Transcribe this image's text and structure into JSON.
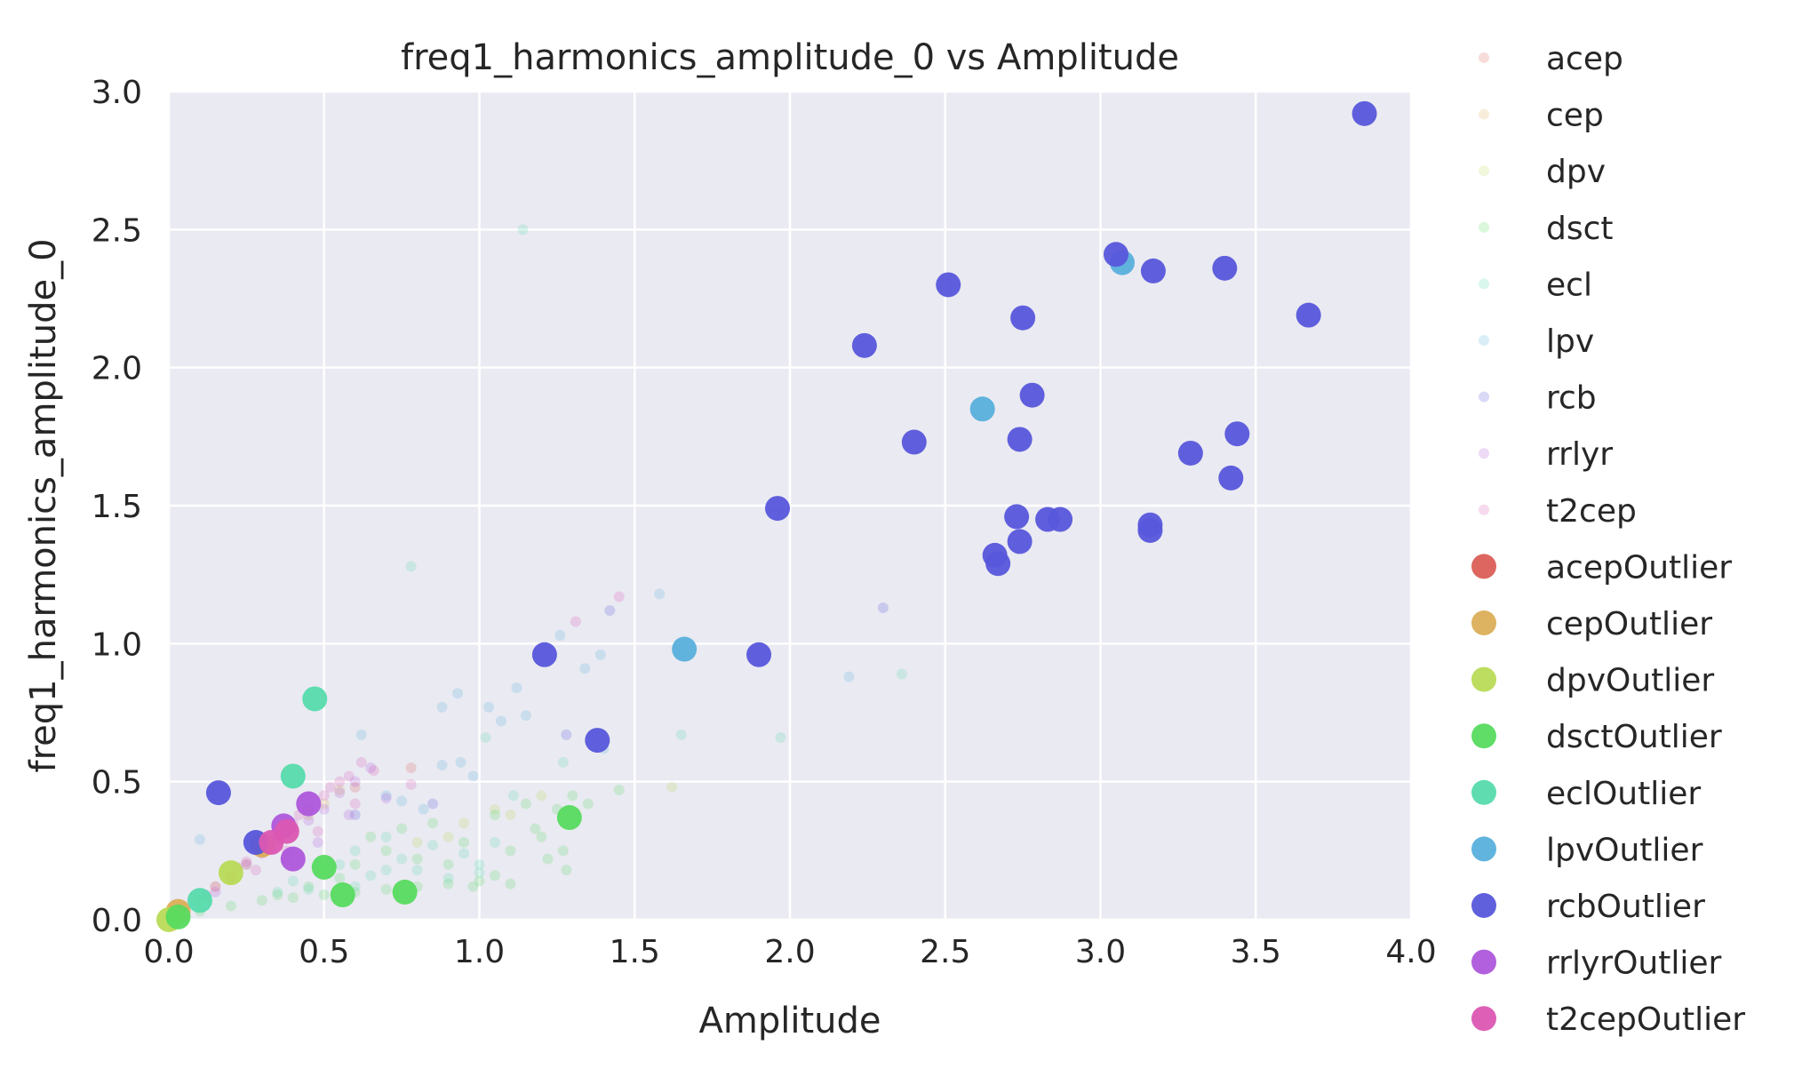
{
  "chart_data": {
    "type": "scatter",
    "title": "freq1_harmonics_amplitude_0 vs Amplitude",
    "xlabel": "Amplitude",
    "ylabel": "freq1_harmonics_amplitude_0",
    "xlim": [
      0.0,
      4.0
    ],
    "ylim": [
      0.0,
      3.0
    ],
    "xticks": [
      "0.0",
      "0.5",
      "1.0",
      "1.5",
      "2.0",
      "2.5",
      "3.0",
      "3.5",
      "4.0"
    ],
    "yticks": [
      "0.0",
      "0.5",
      "1.0",
      "1.5",
      "2.0",
      "2.5",
      "3.0"
    ],
    "grid": true,
    "legend_position": "outside right",
    "background": "#eaeaf2",
    "series": [
      {
        "name": "acep",
        "color": "#db5f57",
        "kind": "inlier",
        "points": [
          [
            0.78,
            0.55
          ],
          [
            0.45,
            0.4
          ],
          [
            0.3,
            0.25
          ],
          [
            0.2,
            0.15
          ],
          [
            0.6,
            0.48
          ]
        ]
      },
      {
        "name": "cep",
        "color": "#dbae57",
        "kind": "inlier",
        "points": [
          [
            0.1,
            0.07
          ],
          [
            0.2,
            0.16
          ],
          [
            0.3,
            0.26
          ],
          [
            0.4,
            0.33
          ],
          [
            0.5,
            0.42
          ],
          [
            0.55,
            0.47
          ],
          [
            0.35,
            0.3
          ],
          [
            0.25,
            0.2
          ],
          [
            0.15,
            0.12
          ],
          [
            0.45,
            0.38
          ]
        ]
      },
      {
        "name": "dpv",
        "color": "#b9db57",
        "kind": "inlier",
        "points": [
          [
            0.95,
            0.35
          ],
          [
            1.05,
            0.4
          ],
          [
            0.9,
            0.3
          ],
          [
            1.2,
            0.45
          ],
          [
            1.1,
            0.38
          ],
          [
            0.8,
            0.28
          ],
          [
            1.62,
            0.48
          ]
        ]
      },
      {
        "name": "dsct",
        "color": "#57db5f",
        "kind": "inlier",
        "points": [
          [
            0.1,
            0.03
          ],
          [
            0.2,
            0.05
          ],
          [
            0.3,
            0.07
          ],
          [
            0.4,
            0.08
          ],
          [
            0.5,
            0.09
          ],
          [
            0.6,
            0.1
          ],
          [
            0.7,
            0.11
          ],
          [
            0.8,
            0.12
          ],
          [
            0.9,
            0.13
          ],
          [
            1.0,
            0.14
          ],
          [
            1.1,
            0.13
          ],
          [
            0.85,
            0.35
          ],
          [
            0.95,
            0.28
          ],
          [
            1.05,
            0.38
          ],
          [
            1.15,
            0.42
          ],
          [
            1.25,
            0.4
          ],
          [
            1.3,
            0.45
          ],
          [
            1.35,
            0.42
          ],
          [
            1.2,
            0.3
          ],
          [
            1.1,
            0.25
          ],
          [
            0.7,
            0.25
          ],
          [
            0.65,
            0.3
          ],
          [
            0.75,
            0.33
          ],
          [
            1.28,
            0.18
          ],
          [
            1.22,
            0.22
          ],
          [
            1.45,
            0.47
          ],
          [
            0.55,
            0.15
          ],
          [
            0.45,
            0.12
          ],
          [
            0.35,
            0.09
          ],
          [
            0.6,
            0.2
          ],
          [
            0.8,
            0.22
          ],
          [
            0.9,
            0.2
          ],
          [
            1.27,
            0.25
          ],
          [
            1.18,
            0.33
          ],
          [
            1.05,
            0.16
          ],
          [
            0.98,
            0.12
          ]
        ]
      },
      {
        "name": "ecl",
        "color": "#57dbac",
        "kind": "inlier",
        "points": [
          [
            1.14,
            2.5
          ],
          [
            0.78,
            1.28
          ],
          [
            2.36,
            0.89
          ],
          [
            1.97,
            0.66
          ],
          [
            1.65,
            0.67
          ],
          [
            1.27,
            0.57
          ],
          [
            0.6,
            0.25
          ],
          [
            0.7,
            0.3
          ],
          [
            0.75,
            0.22
          ],
          [
            0.8,
            0.18
          ],
          [
            0.9,
            0.15
          ],
          [
            1.0,
            0.17
          ],
          [
            0.55,
            0.2
          ],
          [
            0.5,
            0.18
          ],
          [
            0.4,
            0.14
          ],
          [
            0.45,
            0.11
          ],
          [
            0.65,
            0.16
          ],
          [
            0.35,
            0.1
          ],
          [
            0.85,
            0.27
          ],
          [
            1.0,
            0.2
          ],
          [
            1.05,
            0.28
          ],
          [
            0.95,
            0.24
          ],
          [
            0.6,
            0.12
          ],
          [
            0.7,
            0.18
          ],
          [
            1.02,
            0.66
          ],
          [
            1.11,
            0.45
          ]
        ]
      },
      {
        "name": "lpv",
        "color": "#57b0db",
        "kind": "inlier",
        "points": [
          [
            0.1,
            0.29
          ],
          [
            1.58,
            1.18
          ],
          [
            1.26,
            1.03
          ],
          [
            1.39,
            0.96
          ],
          [
            1.34,
            0.91
          ],
          [
            2.19,
            0.88
          ],
          [
            1.12,
            0.84
          ],
          [
            0.93,
            0.82
          ],
          [
            0.88,
            0.77
          ],
          [
            1.03,
            0.77
          ],
          [
            1.07,
            0.72
          ],
          [
            1.15,
            0.74
          ],
          [
            0.62,
            0.67
          ],
          [
            0.88,
            0.56
          ],
          [
            0.94,
            0.57
          ],
          [
            0.98,
            0.52
          ],
          [
            0.7,
            0.45
          ],
          [
            0.75,
            0.43
          ],
          [
            0.82,
            0.4
          ],
          [
            1.4,
            0.62
          ]
        ]
      },
      {
        "name": "rcb",
        "color": "#5757db",
        "kind": "inlier",
        "points": [
          [
            2.3,
            1.13
          ],
          [
            1.42,
            1.12
          ],
          [
            1.28,
            0.67
          ],
          [
            0.85,
            0.42
          ],
          [
            0.6,
            0.38
          ]
        ]
      },
      {
        "name": "rrlyr",
        "color": "#ae57db",
        "kind": "inlier",
        "points": [
          [
            0.2,
            0.15
          ],
          [
            0.3,
            0.24
          ],
          [
            0.4,
            0.33
          ],
          [
            0.5,
            0.4
          ],
          [
            0.55,
            0.46
          ],
          [
            0.35,
            0.3
          ],
          [
            0.45,
            0.36
          ],
          [
            0.6,
            0.5
          ],
          [
            0.65,
            0.55
          ],
          [
            0.25,
            0.2
          ],
          [
            0.15,
            0.1
          ],
          [
            0.7,
            0.44
          ],
          [
            0.58,
            0.38
          ],
          [
            0.48,
            0.28
          ],
          [
            0.38,
            0.22
          ]
        ]
      },
      {
        "name": "t2cep",
        "color": "#db57b2",
        "kind": "inlier",
        "points": [
          [
            1.45,
            1.17
          ],
          [
            1.31,
            1.08
          ],
          [
            0.78,
            0.49
          ],
          [
            0.62,
            0.57
          ],
          [
            0.55,
            0.5
          ],
          [
            0.5,
            0.45
          ],
          [
            0.45,
            0.4
          ],
          [
            0.4,
            0.35
          ],
          [
            0.35,
            0.3
          ],
          [
            0.3,
            0.26
          ],
          [
            0.25,
            0.21
          ],
          [
            0.2,
            0.17
          ],
          [
            0.15,
            0.12
          ],
          [
            0.58,
            0.52
          ],
          [
            0.52,
            0.48
          ],
          [
            0.42,
            0.38
          ],
          [
            0.32,
            0.28
          ],
          [
            0.22,
            0.19
          ],
          [
            0.12,
            0.09
          ],
          [
            0.05,
            0.03
          ],
          [
            0.48,
            0.32
          ],
          [
            0.38,
            0.25
          ],
          [
            0.28,
            0.18
          ],
          [
            0.6,
            0.42
          ],
          [
            0.66,
            0.54
          ]
        ]
      },
      {
        "name": "acepOutlier",
        "color": "#db5f57",
        "kind": "outlier",
        "points": []
      },
      {
        "name": "cepOutlier",
        "color": "#dbae57",
        "kind": "outlier",
        "points": [
          [
            0.03,
            0.03
          ],
          [
            0.3,
            0.27
          ]
        ]
      },
      {
        "name": "dpvOutlier",
        "color": "#b9db57",
        "kind": "outlier",
        "points": [
          [
            0.2,
            0.17
          ],
          [
            0.0,
            0.0
          ]
        ]
      },
      {
        "name": "dsctOutlier",
        "color": "#57db5f",
        "kind": "outlier",
        "points": [
          [
            1.29,
            0.37
          ],
          [
            0.76,
            0.1
          ],
          [
            0.56,
            0.09
          ],
          [
            0.5,
            0.19
          ],
          [
            0.03,
            0.01
          ]
        ]
      },
      {
        "name": "eclOutlier",
        "color": "#57dbac",
        "kind": "outlier",
        "points": [
          [
            0.47,
            0.8
          ],
          [
            0.4,
            0.52
          ],
          [
            0.1,
            0.07
          ]
        ]
      },
      {
        "name": "lpvOutlier",
        "color": "#57b0db",
        "kind": "outlier",
        "points": [
          [
            3.07,
            2.38
          ],
          [
            2.62,
            1.85
          ],
          [
            1.66,
            0.98
          ]
        ]
      },
      {
        "name": "rcbOutlier",
        "color": "#5757db",
        "kind": "outlier",
        "points": [
          [
            3.85,
            2.92
          ],
          [
            3.05,
            2.41
          ],
          [
            3.17,
            2.35
          ],
          [
            3.4,
            2.36
          ],
          [
            2.51,
            2.3
          ],
          [
            2.75,
            2.18
          ],
          [
            3.67,
            2.19
          ],
          [
            2.24,
            2.08
          ],
          [
            2.78,
            1.9
          ],
          [
            2.4,
            1.73
          ],
          [
            2.74,
            1.74
          ],
          [
            3.44,
            1.76
          ],
          [
            3.29,
            1.69
          ],
          [
            3.42,
            1.6
          ],
          [
            1.96,
            1.49
          ],
          [
            2.73,
            1.46
          ],
          [
            2.83,
            1.45
          ],
          [
            2.87,
            1.45
          ],
          [
            3.16,
            1.43
          ],
          [
            3.16,
            1.41
          ],
          [
            2.74,
            1.37
          ],
          [
            2.66,
            1.32
          ],
          [
            2.67,
            1.29
          ],
          [
            1.21,
            0.96
          ],
          [
            1.9,
            0.96
          ],
          [
            1.38,
            0.65
          ],
          [
            0.16,
            0.46
          ],
          [
            0.28,
            0.28
          ]
        ]
      },
      {
        "name": "rrlyrOutlier",
        "color": "#ae57db",
        "kind": "outlier",
        "points": [
          [
            0.37,
            0.34
          ],
          [
            0.45,
            0.42
          ],
          [
            0.4,
            0.22
          ]
        ]
      },
      {
        "name": "t2cepOutlier",
        "color": "#db57b2",
        "kind": "outlier",
        "points": [
          [
            0.33,
            0.28
          ],
          [
            0.38,
            0.32
          ]
        ]
      }
    ]
  }
}
